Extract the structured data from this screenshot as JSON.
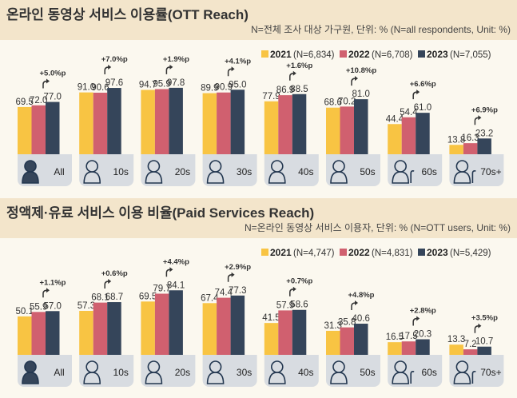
{
  "colors": {
    "2021": "#f8c443",
    "2022": "#d0606f",
    "2023": "#35455a",
    "box": "#d8dce1"
  },
  "chart_data": [
    {
      "type": "bar",
      "title": "온라인 동영상 서비스 이용률(OTT Reach)",
      "subtitle": "N=전체 조사 대상 가구원, 단위: % (N=all respondents, Unit: %)",
      "categories": [
        "All",
        "10s",
        "20s",
        "30s",
        "40s",
        "50s",
        "60s",
        "70s+"
      ],
      "icons": [
        "person-filled-icon",
        "child-icon",
        "young-adult-icon",
        "adult-icon",
        "middle-aged-icon",
        "older-adult-icon",
        "senior-cane-icon",
        "elderly-cane-icon"
      ],
      "legend_position": "top-right",
      "series": [
        {
          "name": "2021",
          "label": "(N=6,834)",
          "values": [
            69.5,
            91.0,
            94.7,
            89.9,
            77.9,
            68.6,
            44.4,
            13.8
          ]
        },
        {
          "name": "2022",
          "label": "(N=6,708)",
          "values": [
            72.0,
            90.6,
            95.9,
            90.9,
            86.9,
            70.2,
            54.4,
            16.3
          ]
        },
        {
          "name": "2023",
          "label": "(N=7,055)",
          "values": [
            77.0,
            97.6,
            97.8,
            95.0,
            88.5,
            81.0,
            61.0,
            23.2
          ]
        }
      ],
      "changes": [
        "+5.0%p",
        "+7.0%p",
        "+1.9%p",
        "+4.1%p",
        "+1.6%p",
        "+10.8%p",
        "+6.6%p",
        "+6.9%p"
      ],
      "ylim": [
        0,
        100
      ]
    },
    {
      "type": "bar",
      "title": "정액제·유료 서비스 이용 비율(Paid Services Reach)",
      "subtitle": "N=온라인 동영상 서비스 이용자, 단위: % (N=OTT users, Unit: %)",
      "categories": [
        "All",
        "10s",
        "20s",
        "30s",
        "40s",
        "50s",
        "60s",
        "70s+"
      ],
      "icons": [
        "person-filled-icon",
        "child-icon",
        "young-adult-icon",
        "adult-icon",
        "middle-aged-icon",
        "older-adult-icon",
        "senior-cane-icon",
        "elderly-cane-icon"
      ],
      "legend_position": "top-right",
      "series": [
        {
          "name": "2021",
          "label": "(N=4,747)",
          "values": [
            50.1,
            57.3,
            69.5,
            67.4,
            41.5,
            31.3,
            16.5,
            13.3
          ]
        },
        {
          "name": "2022",
          "label": "(N=4,831)",
          "values": [
            55.9,
            68.1,
            79.7,
            74.4,
            57.9,
            35.8,
            17.5,
            7.2
          ]
        },
        {
          "name": "2023",
          "label": "(N=5,429)",
          "values": [
            57.0,
            68.7,
            84.1,
            77.3,
            58.6,
            40.6,
            20.3,
            10.7
          ]
        }
      ],
      "changes": [
        "+1.1%p",
        "+0.6%p",
        "+4.4%p",
        "+2.9%p",
        "+0.7%p",
        "+4.8%p",
        "+2.8%p",
        "+3.5%p"
      ],
      "ylim": [
        0,
        100
      ]
    }
  ]
}
